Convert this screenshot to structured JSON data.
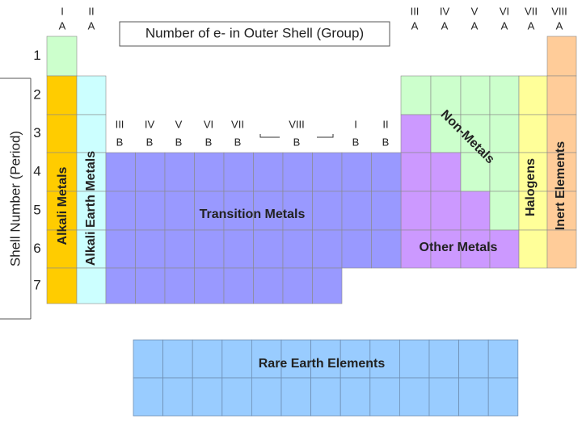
{
  "header": {
    "title": "Number of e- in Outer Shell (Group)",
    "axis_label": "Shell Number (Period)"
  },
  "main_groups": [
    {
      "numeral": "I",
      "letter": "A"
    },
    {
      "numeral": "II",
      "letter": "A"
    },
    {
      "numeral": "III",
      "letter": "A"
    },
    {
      "numeral": "IV",
      "letter": "A"
    },
    {
      "numeral": "V",
      "letter": "A"
    },
    {
      "numeral": "VI",
      "letter": "A"
    },
    {
      "numeral": "VII",
      "letter": "A"
    },
    {
      "numeral": "VIII",
      "letter": "A"
    }
  ],
  "transition_groups": [
    {
      "numeral": "III",
      "letter": "B"
    },
    {
      "numeral": "IV",
      "letter": "B"
    },
    {
      "numeral": "V",
      "letter": "B"
    },
    {
      "numeral": "VI",
      "letter": "B"
    },
    {
      "numeral": "VII",
      "letter": "B"
    },
    {
      "numeral": "VIII",
      "letter": "B"
    },
    {
      "numeral": "I",
      "letter": "B"
    },
    {
      "numeral": "II",
      "letter": "B"
    }
  ],
  "periods": [
    "1",
    "2",
    "3",
    "4",
    "5",
    "6",
    "7"
  ],
  "regions": {
    "alkali": "Alkali Metals",
    "alkali_earth": "Alkali Earth Metals",
    "transition": "Transition Metals",
    "non_metals": "Non-Metals",
    "other": "Other Metals",
    "halogens": "Halogens",
    "inert": "Inert Elements",
    "rare_earth": "Rare Earth Elements"
  }
}
